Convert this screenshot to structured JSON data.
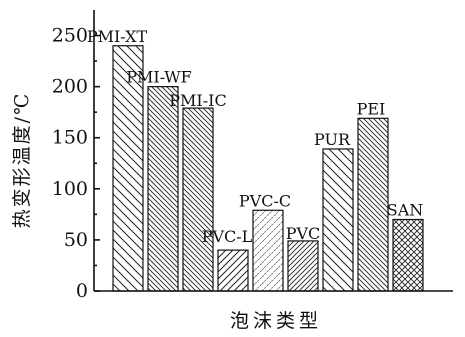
{
  "chart_data": {
    "type": "bar",
    "categories": [
      "PMI-XT",
      "PMI-WF",
      "PMI-IC",
      "PVC-L",
      "PVC-C",
      "PVC",
      "PUR",
      "PEI",
      "SAN"
    ],
    "values": [
      240,
      200,
      179,
      40,
      79,
      49,
      139,
      169,
      70
    ],
    "bar_labels": [
      "PMI-XT",
      "PMI-WF",
      "PMI-IC",
      "PVC-L",
      "PVC-C",
      "PVC",
      "PUR",
      "PEI",
      "SAN"
    ],
    "patterns": [
      "diag-back-sparse",
      "diag-back-dense",
      "diag-back-dense",
      "diag-fwd",
      "diag-fwd-light",
      "diag-fwd-dense",
      "diag-back-sparse",
      "diag-back-dense",
      "crosshatch"
    ],
    "xlabel": "泡沫类型",
    "ylabel": "热变形温度/℃",
    "ylim": [
      0,
      275
    ],
    "yticks": [
      0,
      50,
      100,
      150,
      200,
      250
    ],
    "grid": false
  }
}
